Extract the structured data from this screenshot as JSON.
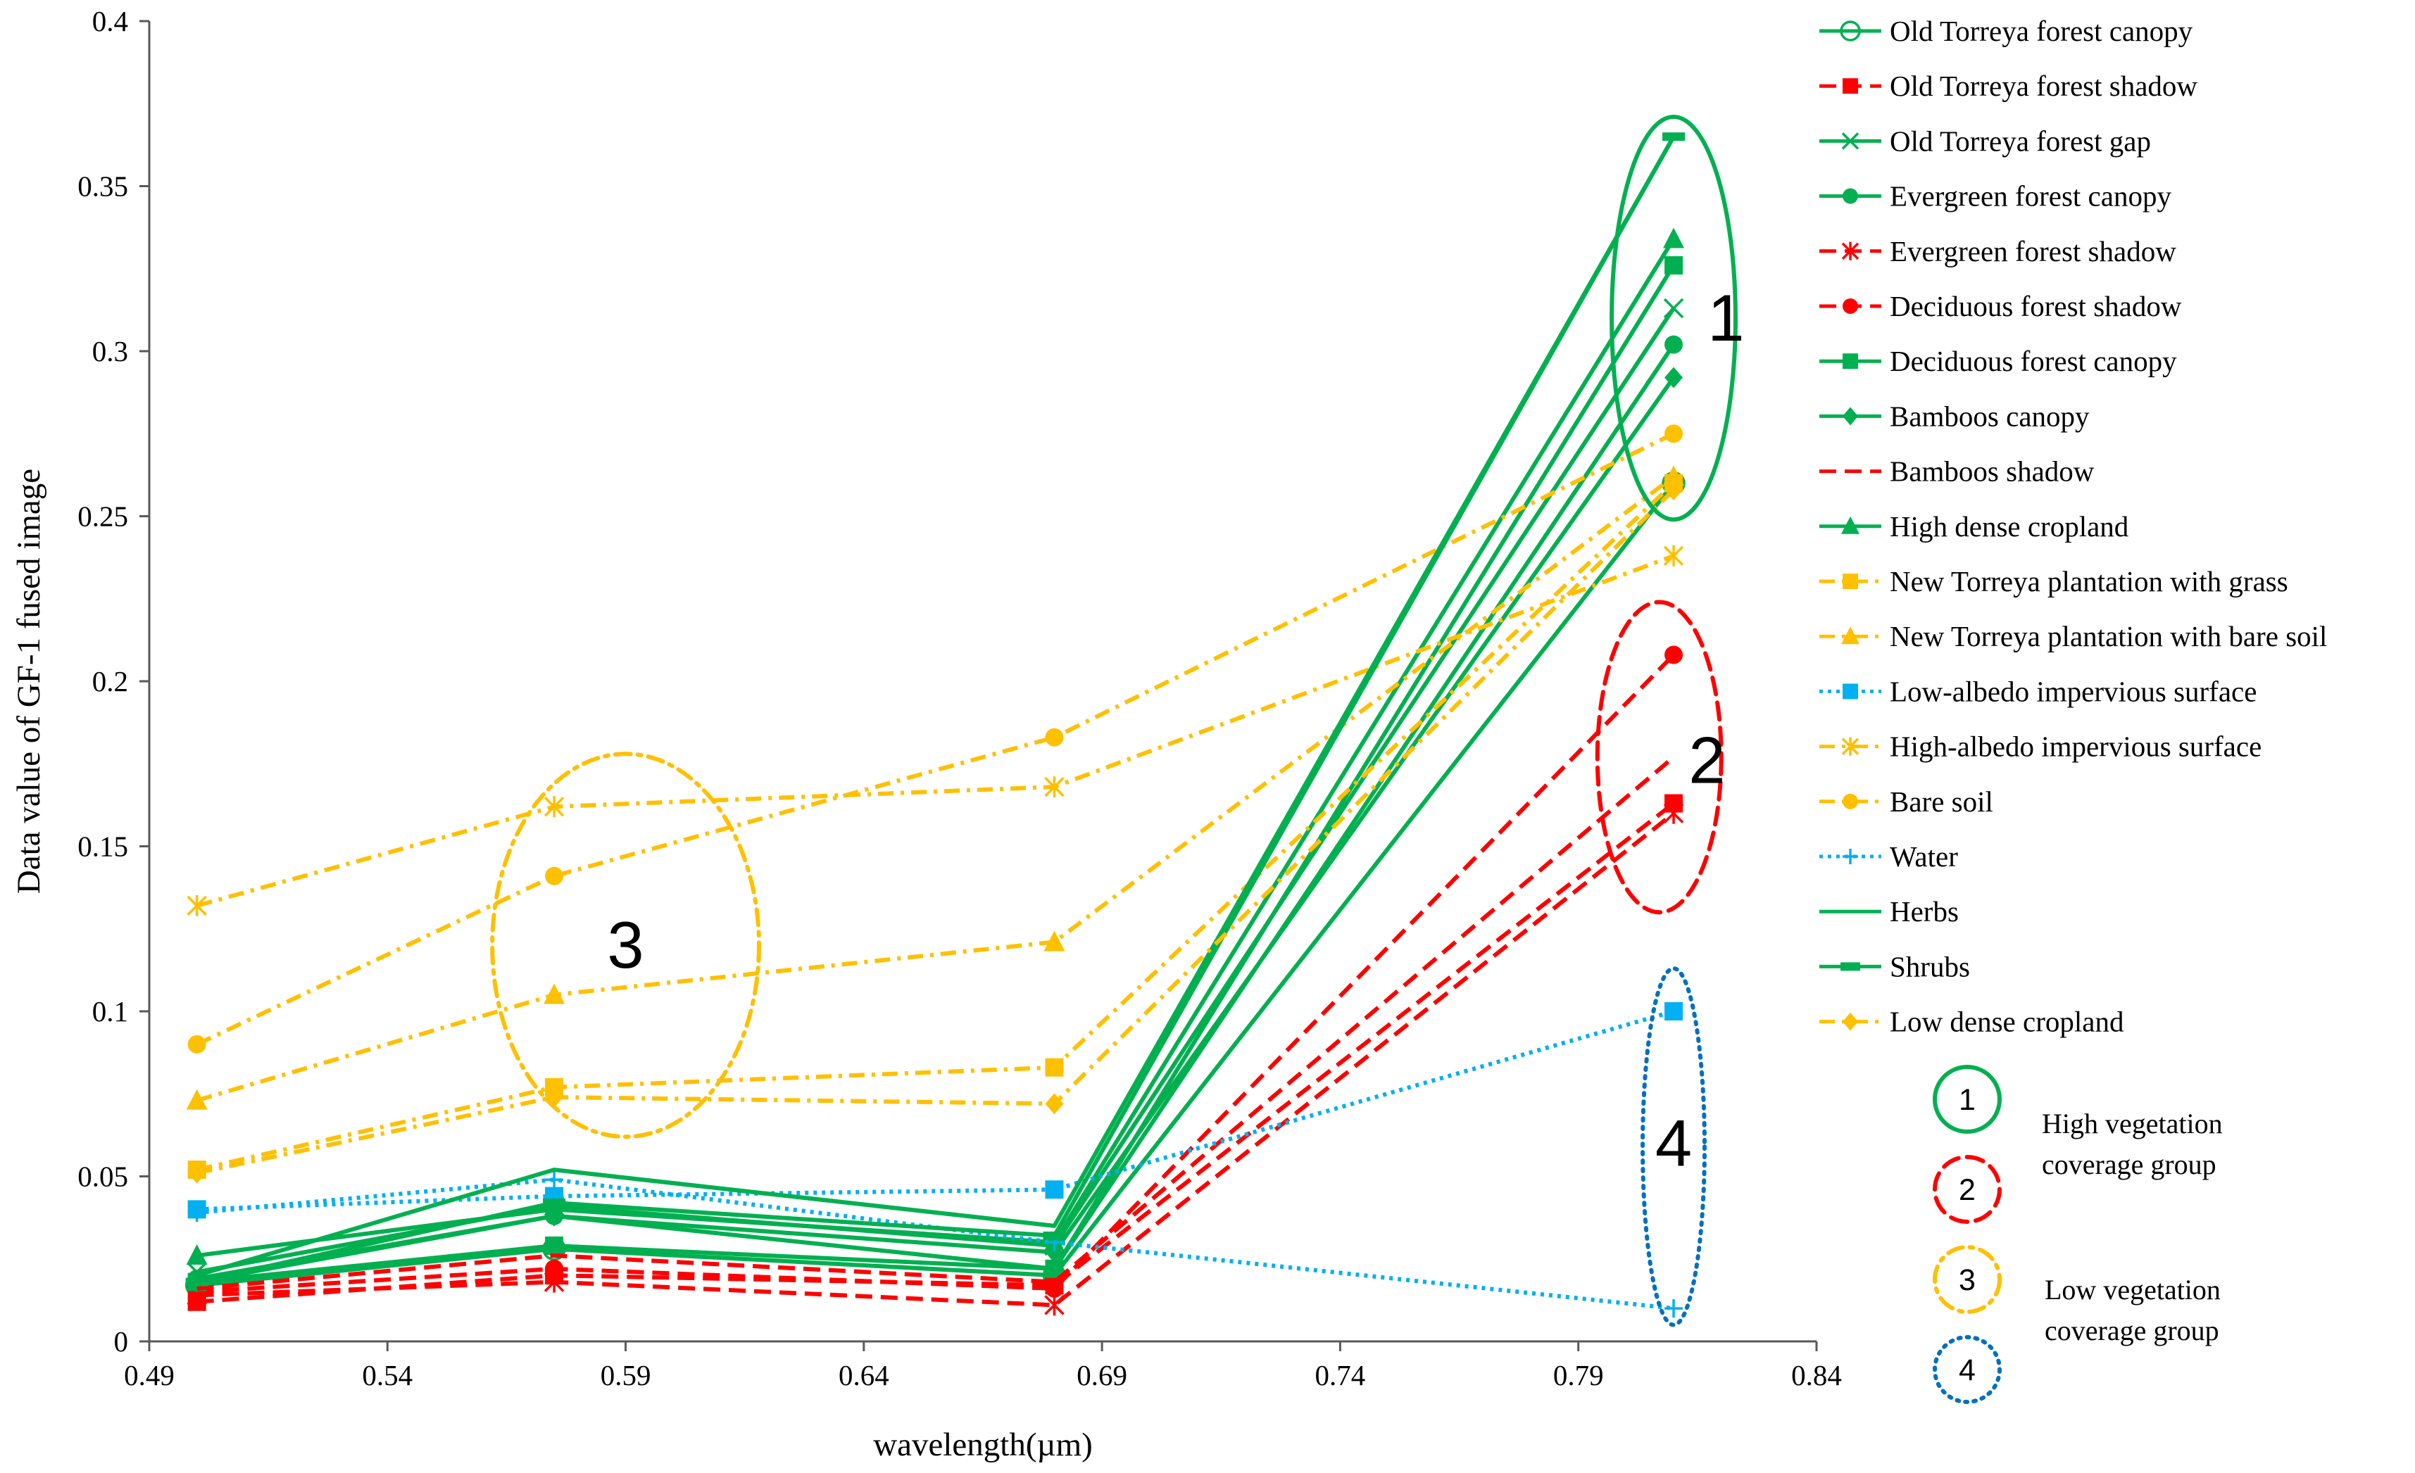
{
  "chart_data": {
    "type": "line",
    "title": "",
    "xlabel": "wavelength(µm)",
    "ylabel": "Data value of GF-1 fused image",
    "xlim": [
      0.49,
      0.84
    ],
    "ylim": [
      0,
      0.4
    ],
    "xticks": [
      "0.49",
      "0.54",
      "0.59",
      "0.64",
      "0.69",
      "0.74",
      "0.79",
      "0.84"
    ],
    "yticks": [
      "0",
      "0.05",
      "0.1",
      "0.15",
      "0.2",
      "0.25",
      "0.3",
      "0.35",
      "0.4"
    ],
    "x": [
      0.5,
      0.575,
      0.68,
      0.81
    ],
    "colors": {
      "green": "#00b050",
      "red": "#ff0000",
      "orange": "#ffc000",
      "blue": "#00b0f0",
      "dark_blue": "#0070c0"
    },
    "series": [
      {
        "name": "Old Torreya forest canopy",
        "color": "#00b050",
        "dash": "solid",
        "marker": "circle-open",
        "values": [
          0.017,
          0.028,
          0.02,
          0.26
        ]
      },
      {
        "name": "Old Torreya forest shadow",
        "color": "#ff0000",
        "dash": "dashed",
        "marker": "square",
        "values": [
          0.012,
          0.02,
          0.017,
          0.163
        ]
      },
      {
        "name": "Old Torreya forest gap",
        "color": "#00b050",
        "dash": "solid",
        "marker": "x",
        "values": [
          0.021,
          0.041,
          0.029,
          0.313
        ]
      },
      {
        "name": "Evergreen forest canopy",
        "color": "#00b050",
        "dash": "solid",
        "marker": "circle",
        "values": [
          0.019,
          0.038,
          0.022,
          0.302
        ]
      },
      {
        "name": "Evergreen forest shadow",
        "color": "#ff0000",
        "dash": "dashed",
        "marker": "asterisk",
        "values": [
          0.014,
          0.018,
          0.011,
          0.16
        ]
      },
      {
        "name": "Deciduous forest shadow",
        "color": "#ff0000",
        "dash": "dashed",
        "marker": "circle",
        "values": [
          0.015,
          0.022,
          0.016,
          0.208
        ]
      },
      {
        "name": "Deciduous forest canopy",
        "color": "#00b050",
        "dash": "solid",
        "marker": "square",
        "values": [
          0.018,
          0.029,
          0.022,
          0.326
        ]
      },
      {
        "name": "Bamboos canopy",
        "color": "#00b050",
        "dash": "solid",
        "marker": "diamond",
        "values": [
          0.018,
          0.038,
          0.027,
          0.292
        ]
      },
      {
        "name": "Bamboos shadow",
        "color": "#ff0000",
        "dash": "dashed",
        "marker": "none",
        "values": [
          0.016,
          0.026,
          0.018,
          0.177
        ]
      },
      {
        "name": "High dense cropland",
        "color": "#00b050",
        "dash": "solid",
        "marker": "triangle",
        "values": [
          0.026,
          0.04,
          0.03,
          0.334
        ]
      },
      {
        "name": "New Torreya plantation with grass",
        "color": "#ffc000",
        "dash": "dashdot",
        "marker": "square",
        "values": [
          0.052,
          0.077,
          0.083,
          0.26
        ]
      },
      {
        "name": "New Torreya plantation with bare soil",
        "color": "#ffc000",
        "dash": "dashdot",
        "marker": "triangle",
        "values": [
          0.073,
          0.105,
          0.121,
          0.262
        ]
      },
      {
        "name": "Low-albedo impervious surface",
        "color": "#00b0f0",
        "dash": "dotted",
        "marker": "square",
        "values": [
          0.04,
          0.044,
          0.046,
          0.1
        ]
      },
      {
        "name": "High-albedo impervious surface",
        "color": "#ffc000",
        "dash": "dashdot",
        "marker": "asterisk",
        "values": [
          0.132,
          0.162,
          0.168,
          0.238
        ]
      },
      {
        "name": "Bare soil",
        "color": "#ffc000",
        "dash": "dashdot",
        "marker": "circle",
        "values": [
          0.09,
          0.141,
          0.183,
          0.275
        ]
      },
      {
        "name": "Water",
        "color": "#00b0f0",
        "dash": "dotted",
        "marker": "plus",
        "values": [
          0.039,
          0.049,
          0.03,
          0.01
        ]
      },
      {
        "name": "Herbs",
        "color": "#00b050",
        "dash": "solid",
        "marker": "none",
        "values": [
          0.02,
          0.052,
          0.035,
          0.365
        ]
      },
      {
        "name": "Shrubs",
        "color": "#00b050",
        "dash": "solid",
        "marker": "dash",
        "values": [
          0.018,
          0.042,
          0.032,
          0.365
        ]
      },
      {
        "name": "Low dense cropland",
        "color": "#ffc000",
        "dash": "dashdot",
        "marker": "diamond",
        "values": [
          0.051,
          0.074,
          0.072,
          0.258
        ]
      }
    ],
    "annotations": [
      {
        "label": "1",
        "color": "#00b050",
        "dash": "solid",
        "cx": 0.81,
        "cy": 0.31,
        "rx": 0.013,
        "ry": 0.061,
        "label_x": 0.821,
        "label_y": 0.31
      },
      {
        "label": "2",
        "color": "#ff0000",
        "dash": "dashed",
        "cx": 0.807,
        "cy": 0.177,
        "rx": 0.013,
        "ry": 0.047,
        "label_x": 0.817,
        "label_y": 0.176
      },
      {
        "label": "3",
        "color": "#ffc000",
        "dash": "dashdot",
        "cx": 0.59,
        "cy": 0.12,
        "rx": 0.028,
        "ry": 0.058,
        "label_x": 0.59,
        "label_y": 0.12
      },
      {
        "label": "4",
        "color": "#0070c0",
        "dash": "dotted",
        "cx": 0.81,
        "cy": 0.059,
        "rx": 0.0065,
        "ry": 0.054,
        "label_x": 0.81,
        "label_y": 0.06
      }
    ],
    "group_key": [
      {
        "label": "1",
        "color": "#00b050",
        "dash": "solid"
      },
      {
        "label": "2",
        "color": "#ff0000",
        "dash": "dashed"
      },
      {
        "label": "3",
        "color": "#ffc000",
        "dash": "dashdot"
      },
      {
        "label": "4",
        "color": "#0070c0",
        "dash": "dotted"
      }
    ],
    "group_labels": [
      {
        "lines": [
          "High vegetation",
          "coverage group"
        ]
      },
      {
        "lines": [
          "Low vegetation",
          "coverage group"
        ]
      }
    ]
  }
}
